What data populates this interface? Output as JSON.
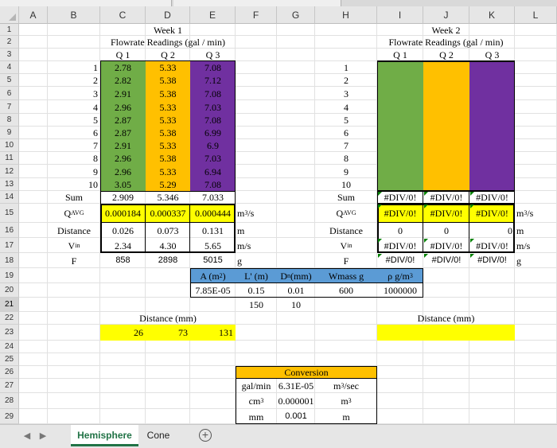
{
  "col_headers": [
    "A",
    "B",
    "C",
    "D",
    "E",
    "F",
    "G",
    "H",
    "I",
    "J",
    "K",
    "L"
  ],
  "row_headers": [
    "1",
    "2",
    "3",
    "4",
    "5",
    "6",
    "7",
    "8",
    "9",
    "10",
    "11",
    "12",
    "13",
    "14",
    "15",
    "16",
    "17",
    "18",
    "19",
    "20",
    "21",
    "22",
    "23",
    "24",
    "25",
    "26",
    "27",
    "28",
    "29"
  ],
  "selected_row": "21",
  "week1": {
    "title": "Week 1",
    "subtitle": "Flowrate Readings (gal / min)",
    "q_headers": [
      "Q 1",
      "Q 2",
      "Q 3"
    ],
    "rows": [
      {
        "n": "1",
        "q1": "2.78",
        "q2": "5.33",
        "q3": "7.08"
      },
      {
        "n": "2",
        "q1": "2.82",
        "q2": "5.38",
        "q3": "7.12"
      },
      {
        "n": "3",
        "q1": "2.91",
        "q2": "5.38",
        "q3": "7.08"
      },
      {
        "n": "4",
        "q1": "2.96",
        "q2": "5.33",
        "q3": "7.03"
      },
      {
        "n": "5",
        "q1": "2.87",
        "q2": "5.33",
        "q3": "7.08"
      },
      {
        "n": "6",
        "q1": "2.87",
        "q2": "5.38",
        "q3": "6.99"
      },
      {
        "n": "7",
        "q1": "2.91",
        "q2": "5.33",
        "q3": "6.9"
      },
      {
        "n": "8",
        "q1": "2.96",
        "q2": "5.38",
        "q3": "7.03"
      },
      {
        "n": "9",
        "q1": "2.96",
        "q2": "5.33",
        "q3": "6.94"
      },
      {
        "n": "10",
        "q1": "3.05",
        "q2": "5.29",
        "q3": "7.08"
      }
    ],
    "sum_label": "Sum",
    "sum": [
      "2.909",
      "5.346",
      "7.033"
    ],
    "qavg_label": "Q",
    "qavg_sub": "AVG",
    "qavg": [
      "0.000184",
      "0.000337",
      "0.000444"
    ],
    "qavg_unit": "m",
    "qavg_unit_sup": "3",
    "qavg_unit_tail": "/s",
    "distance_label": "Distance",
    "distance": [
      "0.026",
      "0.073",
      "0.131"
    ],
    "distance_unit": "m",
    "vin_label": "V",
    "vin_sub": "in",
    "vin": [
      "2.34",
      "4.30",
      "5.65"
    ],
    "vin_unit": "m/s",
    "f_label": "F",
    "f": [
      "858",
      "2898",
      "5015"
    ],
    "f_unit": "g"
  },
  "params": {
    "headers": {
      "area": "A (m",
      "area_sup": "2",
      "area_tail": ")",
      "lprime": "L' (m)",
      "dn": "D",
      "dn_sub": "n",
      "dn_tail": " (mm)",
      "wmass": "Wmass g",
      "rho": "ρ g/m",
      "rho_sup": "3"
    },
    "values": {
      "area": "7.85E-05",
      "lprime": "0.15",
      "dn": "0.01",
      "wmass": "600",
      "rho": "1000000"
    },
    "extra": {
      "lprime": "150",
      "dn": "10"
    }
  },
  "week1_distance": {
    "label": "Distance (mm)",
    "values": [
      "26",
      "73",
      "131"
    ]
  },
  "week2": {
    "title": "Week 2",
    "subtitle": "Flowrate Readings (gal / min)",
    "q_headers": [
      "Q 1",
      "Q 2",
      "Q 3"
    ],
    "row_numbers": [
      "1",
      "2",
      "3",
      "4",
      "5",
      "6",
      "7",
      "8",
      "9",
      "10"
    ],
    "sum_label": "Sum",
    "sum": [
      "#DIV/0!",
      "#DIV/0!",
      "#DIV/0!"
    ],
    "qavg_label": "Q",
    "qavg_sub": "AVG",
    "qavg": [
      "#DIV/0!",
      "#DIV/0!",
      "#DIV/0!"
    ],
    "qavg_unit": "m",
    "qavg_unit_sup": "3",
    "qavg_unit_tail": "/s",
    "distance_label": "Distance",
    "distance": [
      "0",
      "0",
      "0"
    ],
    "distance_unit": "m",
    "vin_label": "V",
    "vin_sub": "in",
    "vin": [
      "#DIV/0!",
      "#DIV/0!",
      "#DIV/0!"
    ],
    "vin_unit": "m/s",
    "f_label": "F",
    "f": [
      "#DIV/0!",
      "#DIV/0!",
      "#DIV/0!"
    ],
    "f_unit": "g"
  },
  "week2_distance": {
    "label": "Distance (mm)"
  },
  "conversion": {
    "title": "Conversion",
    "rows": [
      {
        "from": "gal/min",
        "factor": "6.31E-05",
        "to": "m",
        "to_sup": "3",
        "to_tail": "/sec"
      },
      {
        "from": "cm",
        "from_sup": "3",
        "factor": "0.000001",
        "to": "m",
        "to_sup": "3",
        "to_tail": ""
      },
      {
        "from": "mm",
        "factor": "0.001",
        "to": "m",
        "to_sup": "",
        "to_tail": ""
      }
    ]
  },
  "sheet_tabs": [
    "Hemisphere",
    "Cone"
  ],
  "active_tab": "Hemisphere",
  "add_sheet_label": "+",
  "nav_prev": "◀",
  "nav_next": "▶",
  "colors": {
    "green": "#70ad47",
    "orange": "#ffc000",
    "purple": "#7030a0",
    "yellow": "#ffff00",
    "blue": "#5b9bd5",
    "tab_accent": "#217346"
  }
}
